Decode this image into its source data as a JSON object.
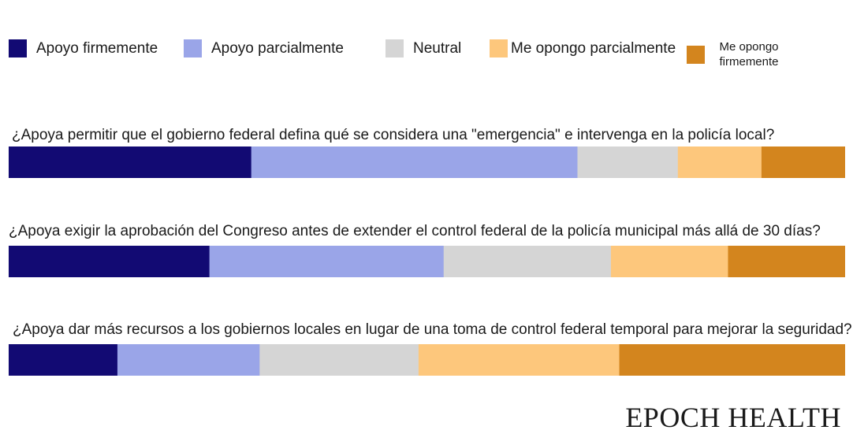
{
  "chart_data": {
    "type": "bar",
    "stacked": true,
    "orientation": "horizontal",
    "value_unit": "percent of respondents (estimated from bar widths)",
    "legend_position": "top",
    "categories": [
      "¿Apoya permitir que el gobierno federal defina qué se considera una \"emergencia\" e intervenga en la policía local?",
      "¿Apoya exigir la aprobación del Congreso antes de extender el control federal de la policía municipal más allá de 30 días?",
      "¿Apoya dar más recursos a los gobiernos locales en lugar de una toma de control federal temporal para mejorar la seguridad?"
    ],
    "series": [
      {
        "name": "Apoyo firmemente",
        "color": "#120a73",
        "values": [
          29,
          24,
          13
        ]
      },
      {
        "name": "Apoyo parcialmente",
        "color": "#9aa5e8",
        "values": [
          39,
          28,
          17
        ]
      },
      {
        "name": "Neutral",
        "color": "#d5d5d5",
        "values": [
          12,
          20,
          19
        ]
      },
      {
        "name": "Me opongo parcialmente",
        "color": "#fdc77c",
        "values": [
          10,
          14,
          24
        ]
      },
      {
        "name": "Me opongo firmemente",
        "color": "#d3851e",
        "values": [
          10,
          14,
          27
        ]
      }
    ]
  },
  "brand": "EPOCH HEALTH"
}
